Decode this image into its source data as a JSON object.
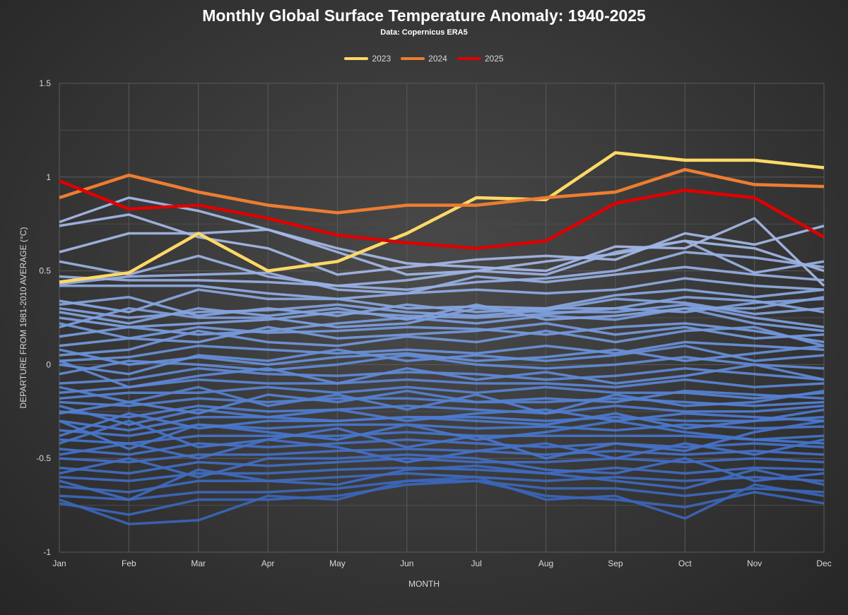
{
  "chart_data": {
    "type": "line",
    "title": "Monthly Global Surface Temperature Anomaly: 1940-2025",
    "subtitle": "Data: Copernicus ERA5",
    "xlabel": "MONTH",
    "ylabel": "DEPARTURE FROM 1981-2010 AVERAGE (°C)",
    "categories": [
      "Jan",
      "Feb",
      "Mar",
      "Apr",
      "May",
      "Jun",
      "Jul",
      "Aug",
      "Sep",
      "Oct",
      "Nov",
      "Dec"
    ],
    "ylim": [
      -1,
      1.5
    ],
    "yticks": [
      -1,
      -0.5,
      0,
      0.5,
      1,
      1.5
    ],
    "ytick_labels": [
      "-1",
      "-0.5",
      "0",
      "0.5",
      "1",
      "1.5"
    ],
    "grid": true,
    "legend_position": "top-center",
    "highlight_series": [
      {
        "name": "2023",
        "color": "#ffd966",
        "values": [
          0.44,
          0.49,
          0.7,
          0.5,
          0.55,
          0.7,
          0.89,
          0.88,
          1.13,
          1.09,
          1.09,
          1.05
        ]
      },
      {
        "name": "2024",
        "color": "#ed7d31",
        "values": [
          0.89,
          1.01,
          0.92,
          0.85,
          0.81,
          0.85,
          0.85,
          0.89,
          0.92,
          1.04,
          0.96,
          0.95
        ]
      },
      {
        "name": "2025",
        "color": "#e00000",
        "values": [
          0.98,
          0.83,
          0.85,
          0.78,
          0.69,
          0.65,
          0.62,
          0.66,
          0.86,
          0.93,
          0.89,
          0.68
        ]
      }
    ],
    "background_series_description": "Years 1940-2022 (unlabeled)",
    "background_series": [
      {
        "values": [
          0.76,
          0.89,
          0.82,
          0.72,
          0.62,
          0.54,
          0.52,
          0.5,
          0.63,
          0.62,
          0.78,
          0.42
        ]
      },
      {
        "values": [
          0.74,
          0.8,
          0.68,
          0.62,
          0.48,
          0.52,
          0.56,
          0.58,
          0.56,
          0.7,
          0.64,
          0.74
        ]
      },
      {
        "values": [
          0.6,
          0.7,
          0.7,
          0.72,
          0.6,
          0.48,
          0.5,
          0.55,
          0.59,
          0.66,
          0.62,
          0.5
        ]
      },
      {
        "values": [
          0.55,
          0.48,
          0.58,
          0.47,
          0.42,
          0.45,
          0.5,
          0.48,
          0.6,
          0.66,
          0.49,
          0.55
        ]
      },
      {
        "values": [
          0.47,
          0.45,
          0.45,
          0.44,
          0.42,
          0.4,
          0.44,
          0.46,
          0.5,
          0.6,
          0.57,
          0.52
        ]
      },
      {
        "values": [
          0.43,
          0.47,
          0.48,
          0.49,
          0.4,
          0.38,
          0.47,
          0.44,
          0.48,
          0.52,
          0.48,
          0.45
        ]
      },
      {
        "values": [
          0.42,
          0.42,
          0.42,
          0.38,
          0.35,
          0.38,
          0.4,
          0.38,
          0.4,
          0.46,
          0.42,
          0.4
        ]
      },
      {
        "values": [
          0.34,
          0.28,
          0.4,
          0.35,
          0.35,
          0.3,
          0.31,
          0.3,
          0.37,
          0.4,
          0.36,
          0.4
        ]
      },
      {
        "values": [
          0.3,
          0.25,
          0.28,
          0.29,
          0.32,
          0.28,
          0.26,
          0.29,
          0.35,
          0.33,
          0.27,
          0.3
        ]
      },
      {
        "values": [
          0.25,
          0.2,
          0.22,
          0.24,
          0.28,
          0.26,
          0.25,
          0.27,
          0.3,
          0.28,
          0.33,
          0.35
        ]
      },
      {
        "values": [
          0.2,
          0.3,
          0.25,
          0.25,
          0.2,
          0.22,
          0.3,
          0.28,
          0.28,
          0.32,
          0.25,
          0.2
        ]
      },
      {
        "values": [
          0.15,
          0.2,
          0.16,
          0.18,
          0.22,
          0.25,
          0.22,
          0.26,
          0.24,
          0.3,
          0.22,
          0.18
        ]
      },
      {
        "values": [
          0.1,
          0.14,
          0.2,
          0.17,
          0.18,
          0.2,
          0.19,
          0.16,
          0.2,
          0.22,
          0.18,
          0.12
        ]
      },
      {
        "values": [
          0.05,
          0.08,
          0.18,
          0.12,
          0.1,
          0.15,
          0.12,
          0.18,
          0.12,
          0.18,
          0.2,
          0.1
        ]
      },
      {
        "values": [
          0.02,
          0.04,
          0.1,
          0.08,
          0.06,
          0.08,
          0.06,
          0.1,
          0.06,
          0.12,
          0.1,
          0.08
        ]
      },
      {
        "values": [
          0.0,
          -0.05,
          0.05,
          0.02,
          0.08,
          0.02,
          0.05,
          0.02,
          0.05,
          0.1,
          0.02,
          0.05
        ]
      },
      {
        "values": [
          -0.05,
          0.02,
          0.0,
          -0.03,
          0.0,
          0.05,
          0.0,
          -0.02,
          0.0,
          0.04,
          0.0,
          -0.02
        ]
      },
      {
        "values": [
          -0.1,
          -0.08,
          -0.02,
          -0.05,
          -0.06,
          -0.04,
          -0.05,
          -0.08,
          -0.06,
          -0.02,
          -0.05,
          -0.08
        ]
      },
      {
        "values": [
          -0.15,
          -0.12,
          -0.08,
          -0.1,
          -0.1,
          -0.08,
          -0.1,
          -0.1,
          -0.12,
          -0.08,
          -0.12,
          -0.1
        ]
      },
      {
        "values": [
          -0.18,
          -0.15,
          -0.15,
          -0.12,
          -0.15,
          -0.12,
          -0.15,
          -0.12,
          -0.15,
          -0.15,
          -0.18,
          -0.15
        ]
      },
      {
        "values": [
          -0.2,
          -0.22,
          -0.18,
          -0.2,
          -0.18,
          -0.18,
          -0.2,
          -0.2,
          -0.18,
          -0.2,
          -0.22,
          -0.2
        ]
      },
      {
        "values": [
          -0.25,
          -0.28,
          -0.22,
          -0.25,
          -0.24,
          -0.22,
          -0.24,
          -0.26,
          -0.22,
          -0.25,
          -0.25,
          -0.22
        ]
      },
      {
        "values": [
          -0.3,
          -0.35,
          -0.28,
          -0.28,
          -0.3,
          -0.28,
          -0.28,
          -0.3,
          -0.28,
          -0.3,
          -0.3,
          -0.28
        ]
      },
      {
        "values": [
          -0.35,
          -0.38,
          -0.32,
          -0.34,
          -0.32,
          -0.32,
          -0.34,
          -0.33,
          -0.35,
          -0.32,
          -0.34,
          -0.33
        ]
      },
      {
        "values": [
          -0.4,
          -0.42,
          -0.38,
          -0.38,
          -0.38,
          -0.36,
          -0.38,
          -0.38,
          -0.38,
          -0.38,
          -0.4,
          -0.38
        ]
      },
      {
        "values": [
          -0.45,
          -0.48,
          -0.42,
          -0.44,
          -0.42,
          -0.4,
          -0.42,
          -0.44,
          -0.42,
          -0.44,
          -0.42,
          -0.44
        ]
      },
      {
        "values": [
          -0.5,
          -0.52,
          -0.48,
          -0.48,
          -0.46,
          -0.45,
          -0.46,
          -0.48,
          -0.46,
          -0.48,
          -0.46,
          -0.48
        ]
      },
      {
        "values": [
          -0.55,
          -0.58,
          -0.52,
          -0.54,
          -0.52,
          -0.5,
          -0.52,
          -0.52,
          -0.5,
          -0.52,
          -0.5,
          -0.52
        ]
      },
      {
        "values": [
          -0.6,
          -0.62,
          -0.58,
          -0.58,
          -0.56,
          -0.55,
          -0.56,
          -0.58,
          -0.55,
          -0.58,
          -0.55,
          -0.56
        ]
      },
      {
        "values": [
          -0.65,
          -0.68,
          -0.62,
          -0.62,
          -0.6,
          -0.58,
          -0.6,
          -0.62,
          -0.6,
          -0.62,
          -0.6,
          -0.62
        ]
      },
      {
        "values": [
          -0.7,
          -0.72,
          -0.68,
          -0.68,
          -0.66,
          -0.62,
          -0.62,
          -0.66,
          -0.66,
          -0.7,
          -0.66,
          -0.68
        ]
      },
      {
        "values": [
          -0.74,
          -0.8,
          -0.72,
          -0.72,
          -0.7,
          -0.64,
          -0.62,
          -0.7,
          -0.72,
          -0.76,
          -0.68,
          -0.74
        ]
      },
      {
        "values": [
          -0.72,
          -0.85,
          -0.83,
          -0.7,
          -0.72,
          -0.62,
          -0.6,
          -0.72,
          -0.7,
          -0.82,
          -0.64,
          -0.7
        ]
      },
      {
        "values": [
          -0.42,
          -0.3,
          -0.44,
          -0.4,
          -0.34,
          -0.44,
          -0.38,
          -0.5,
          -0.42,
          -0.46,
          -0.36,
          -0.3
        ]
      },
      {
        "values": [
          -0.3,
          -0.45,
          -0.32,
          -0.36,
          -0.4,
          -0.32,
          -0.4,
          -0.36,
          -0.3,
          -0.36,
          -0.4,
          -0.42
        ]
      },
      {
        "values": [
          -0.48,
          -0.42,
          -0.5,
          -0.4,
          -0.44,
          -0.52,
          -0.46,
          -0.42,
          -0.5,
          -0.42,
          -0.48,
          -0.4
        ]
      },
      {
        "values": [
          -0.58,
          -0.5,
          -0.6,
          -0.5,
          -0.5,
          -0.48,
          -0.5,
          -0.56,
          -0.58,
          -0.5,
          -0.62,
          -0.58
        ]
      },
      {
        "values": [
          -0.62,
          -0.72,
          -0.56,
          -0.62,
          -0.64,
          -0.56,
          -0.54,
          -0.58,
          -0.62,
          -0.66,
          -0.56,
          -0.64
        ]
      },
      {
        "values": [
          -0.38,
          -0.26,
          -0.34,
          -0.3,
          -0.3,
          -0.28,
          -0.3,
          -0.32,
          -0.26,
          -0.34,
          -0.3,
          -0.24
        ]
      },
      {
        "values": [
          -0.22,
          -0.32,
          -0.24,
          -0.28,
          -0.24,
          -0.3,
          -0.26,
          -0.24,
          -0.3,
          -0.26,
          -0.28,
          -0.3
        ]
      },
      {
        "values": [
          -0.12,
          -0.2,
          -0.26,
          -0.16,
          -0.2,
          -0.14,
          -0.2,
          -0.18,
          -0.2,
          -0.14,
          -0.16,
          -0.18
        ]
      },
      {
        "values": [
          0.08,
          0.0,
          0.04,
          0.0,
          0.04,
          0.06,
          0.02,
          0.04,
          0.08,
          0.02,
          0.06,
          0.1
        ]
      },
      {
        "values": [
          0.22,
          0.14,
          0.12,
          0.2,
          0.14,
          0.16,
          0.18,
          0.22,
          0.16,
          0.2,
          0.14,
          0.16
        ]
      },
      {
        "values": [
          0.32,
          0.36,
          0.26,
          0.3,
          0.26,
          0.32,
          0.28,
          0.3,
          0.3,
          0.36,
          0.34,
          0.28
        ]
      },
      {
        "values": [
          0.28,
          0.22,
          0.3,
          0.26,
          0.3,
          0.24,
          0.32,
          0.24,
          0.26,
          0.3,
          0.3,
          0.36
        ]
      },
      {
        "values": [
          0.02,
          -0.12,
          -0.06,
          -0.02,
          -0.1,
          -0.02,
          -0.08,
          -0.04,
          -0.1,
          -0.06,
          0.0,
          -0.08
        ]
      },
      {
        "values": [
          -0.26,
          -0.2,
          -0.12,
          -0.22,
          -0.16,
          -0.24,
          -0.16,
          -0.26,
          -0.16,
          -0.22,
          -0.2,
          -0.14
        ]
      }
    ]
  }
}
